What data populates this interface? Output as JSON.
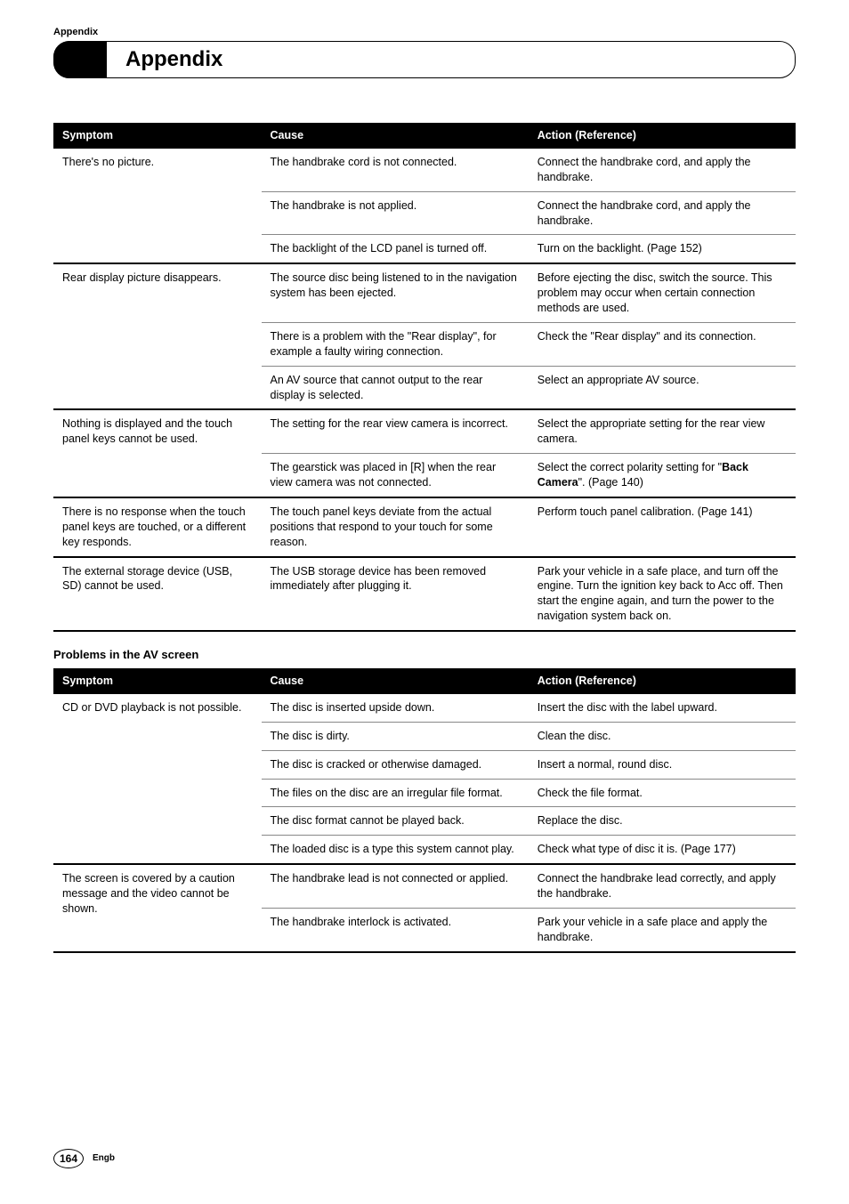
{
  "header": {
    "section_label": "Appendix",
    "title": "Appendix"
  },
  "table1": {
    "headers": [
      "Symptom",
      "Cause",
      "Action (Reference)"
    ],
    "groups": [
      {
        "symptom": "There's no picture.",
        "rows": [
          {
            "cause": "The handbrake cord is not connected.",
            "action": "Connect the handbrake cord, and apply the handbrake."
          },
          {
            "cause": "The handbrake is not applied.",
            "action": "Connect the handbrake cord, and apply the handbrake."
          },
          {
            "cause": "The backlight of the LCD panel is turned off.",
            "action": "Turn on the backlight. (Page 152)"
          }
        ]
      },
      {
        "symptom": "Rear display picture disappears.",
        "rows": [
          {
            "cause": "The source disc being listened to in the navigation system has been ejected.",
            "action": "Before ejecting the disc, switch the source. This problem may occur when certain connection methods are used."
          },
          {
            "cause": "There is a problem with the \"Rear display\", for example a faulty wiring connection.",
            "action": "Check the \"Rear display\" and its connection."
          },
          {
            "cause": "An AV source that cannot output to the rear display is selected.",
            "action": "Select an appropriate AV source."
          }
        ]
      },
      {
        "symptom": "Nothing is displayed and the touch panel keys cannot be used.",
        "rows": [
          {
            "cause": "The setting for the rear view camera is incorrect.",
            "action": "Select the appropriate setting for the rear view camera."
          },
          {
            "cause": "The gearstick was placed in [R] when the rear view camera was not connected.",
            "action_html": "Select the correct polarity setting for \"<b>Back Camera</b>\". (Page 140)"
          }
        ]
      },
      {
        "symptom": "There is no response when the touch panel keys are touched, or a different key responds.",
        "rows": [
          {
            "cause": "The touch panel keys deviate from the actual positions that respond to your touch for some reason.",
            "action": "Perform touch panel calibration. (Page 141)"
          }
        ]
      },
      {
        "symptom": "The external storage device (USB, SD) cannot be used.",
        "rows": [
          {
            "cause": "The USB storage device has been removed immediately after plugging it.",
            "action": "Park your vehicle in a safe place, and turn off the engine. Turn the ignition key back to Acc off. Then start the engine again, and turn the power to the navigation system back on."
          }
        ]
      }
    ]
  },
  "subheading": "Problems in the AV screen",
  "table2": {
    "headers": [
      "Symptom",
      "Cause",
      "Action (Reference)"
    ],
    "groups": [
      {
        "symptom": "CD or DVD playback is not possible.",
        "rows": [
          {
            "cause": "The disc is inserted upside down.",
            "action": "Insert the disc with the label upward."
          },
          {
            "cause": "The disc is dirty.",
            "action": "Clean the disc."
          },
          {
            "cause": "The disc is cracked or otherwise damaged.",
            "action": "Insert a normal, round disc."
          },
          {
            "cause": "The files on the disc are an irregular file format.",
            "action": "Check the file format."
          },
          {
            "cause": "The disc format cannot be played back.",
            "action": "Replace the disc."
          },
          {
            "cause": "The loaded disc is a type this system cannot play.",
            "action": "Check what type of disc it is. (Page 177)"
          }
        ]
      },
      {
        "symptom": "The screen is covered by a caution message and the video cannot be shown.",
        "rows": [
          {
            "cause": "The handbrake lead is not connected or applied.",
            "action": "Connect the handbrake lead correctly, and apply the handbrake."
          },
          {
            "cause": "The handbrake interlock is activated.",
            "action": "Park your vehicle in a safe place and apply the handbrake."
          }
        ]
      }
    ]
  },
  "footer": {
    "page": "164",
    "lang": "Engb"
  }
}
